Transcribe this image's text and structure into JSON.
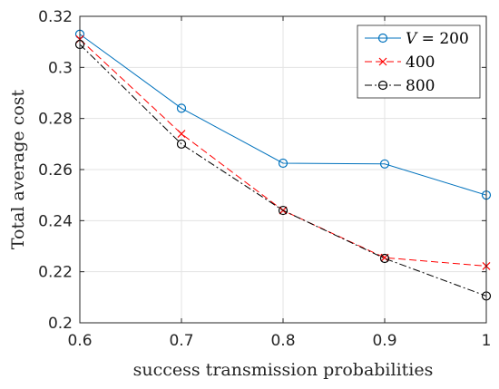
{
  "chart_data": {
    "type": "line",
    "xlabel": "success transmission probabilities",
    "ylabel": "Total average cost",
    "xlim": [
      0.6,
      1.0
    ],
    "ylim": [
      0.2,
      0.32
    ],
    "xticks": [
      0.6,
      0.7,
      0.8,
      0.9,
      1.0
    ],
    "xtick_labels": [
      "0.6",
      "0.7",
      "0.8",
      "0.9",
      "1"
    ],
    "yticks": [
      0.2,
      0.22,
      0.24,
      0.26,
      0.28,
      0.3,
      0.32
    ],
    "ytick_labels": [
      "0.2",
      "0.22",
      "0.24",
      "0.26",
      "0.28",
      "0.3",
      "0.32"
    ],
    "grid": true,
    "legend_position": "top-right",
    "legend_var": "V",
    "legend_eq": "= 200",
    "x": [
      0.6,
      0.7,
      0.8,
      0.9,
      1.0
    ],
    "series": [
      {
        "name": "200",
        "values": [
          0.313,
          0.284,
          0.2625,
          0.2622,
          0.25
        ],
        "color": "#0072BD",
        "line": "solid",
        "marker": "circle"
      },
      {
        "name": "400",
        "values": [
          0.311,
          0.274,
          0.244,
          0.2255,
          0.2222
        ],
        "color": "#FF0000",
        "line": "dashed",
        "marker": "cross"
      },
      {
        "name": "800",
        "values": [
          0.309,
          0.27,
          0.244,
          0.2252,
          0.2105
        ],
        "color": "#000000",
        "line": "dashdot",
        "marker": "circle"
      }
    ]
  }
}
